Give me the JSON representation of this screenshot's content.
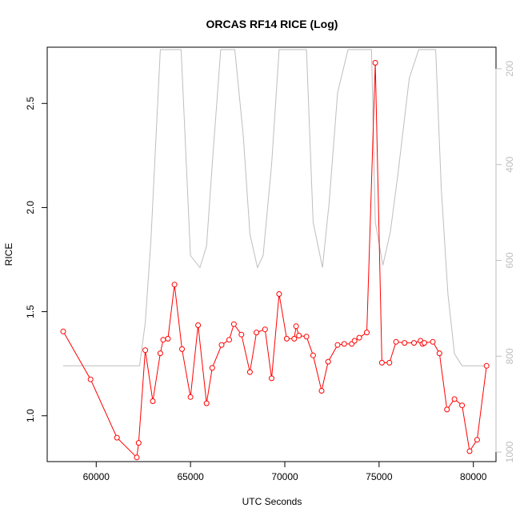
{
  "chart_data": {
    "type": "line",
    "title": "ORCAS RF14 RICE (Log)",
    "xlabel": "UTC Seconds",
    "ylabel": "RICE",
    "xlim": [
      57400,
      81200
    ],
    "ylim": [
      0.78,
      2.77
    ],
    "x_ticks": [
      60000,
      65000,
      70000,
      75000,
      80000
    ],
    "y_ticks": [
      1.0,
      1.5,
      2.0,
      2.5
    ],
    "y2_lim": [
      1020,
      155
    ],
    "y2_ticks": [
      200,
      400,
      600,
      800,
      1000
    ],
    "colors": {
      "rice": "#ff0000",
      "pressure": "#bebebe",
      "axes": "#000000",
      "y2_axis": "#bebebe"
    },
    "series": [
      {
        "key": "rice",
        "x": [
          58250,
          59700,
          61100,
          62150,
          62250,
          62600,
          63000,
          63400,
          63550,
          63800,
          64150,
          64550,
          65000,
          65400,
          65850,
          66150,
          66650,
          67050,
          67300,
          67700,
          68150,
          68500,
          68950,
          69300,
          69700,
          70100,
          70500,
          70600,
          70750,
          71150,
          71500,
          71950,
          72300,
          72800,
          73150,
          73550,
          73700,
          73950,
          74350,
          74800,
          75150,
          75550,
          75900,
          76350,
          76850,
          77200,
          77300,
          77400,
          77850,
          78200,
          78600,
          79000,
          79400,
          79800,
          80200,
          80700
        ],
        "values": [
          1.405,
          1.175,
          0.895,
          0.8,
          0.87,
          1.315,
          1.07,
          1.3,
          1.365,
          1.37,
          1.63,
          1.32,
          1.09,
          1.435,
          1.06,
          1.23,
          1.34,
          1.365,
          1.44,
          1.39,
          1.21,
          1.4,
          1.415,
          1.18,
          1.585,
          1.37,
          1.37,
          1.43,
          1.385,
          1.38,
          1.29,
          1.12,
          1.26,
          1.34,
          1.345,
          1.345,
          1.36,
          1.375,
          1.4,
          2.695,
          1.255,
          1.255,
          1.355,
          1.35,
          1.35,
          1.36,
          1.345,
          1.35,
          1.355,
          1.3,
          1.03,
          1.08,
          1.05,
          0.83,
          0.885,
          1.24
        ]
      },
      {
        "key": "pressure",
        "x": [
          58250,
          62300,
          62600,
          62900,
          63400,
          63700,
          64050,
          64500,
          65000,
          65500,
          65850,
          66150,
          66600,
          66950,
          67350,
          67800,
          68150,
          68550,
          68850,
          69300,
          69700,
          70100,
          70650,
          71150,
          71500,
          72000,
          72350,
          72800,
          73350,
          73800,
          74200,
          74600,
          74800,
          75200,
          75600,
          76000,
          76600,
          77100,
          77600,
          78000,
          78300,
          78650,
          79000,
          79400,
          80700
        ],
        "values": [
          820,
          820,
          730,
          560,
          160,
          160,
          160,
          160,
          590,
          615,
          570,
          400,
          160,
          160,
          160,
          340,
          545,
          615,
          590,
          400,
          160,
          160,
          160,
          160,
          520,
          615,
          480,
          250,
          160,
          160,
          160,
          160,
          520,
          610,
          540,
          420,
          220,
          160,
          160,
          160,
          450,
          670,
          795,
          820,
          820
        ]
      }
    ]
  }
}
